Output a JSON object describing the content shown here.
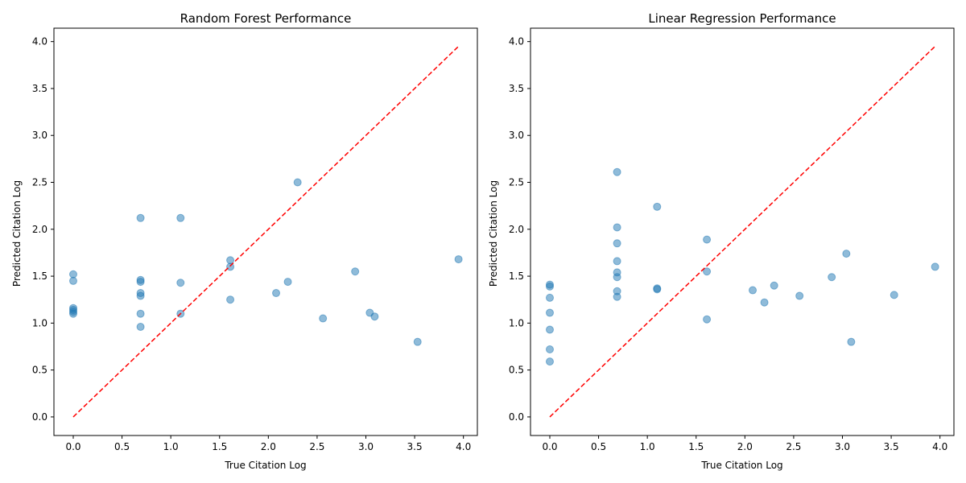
{
  "chart_data": [
    {
      "type": "scatter",
      "title": "Random Forest Performance",
      "xlabel": "True Citation Log",
      "ylabel": "Predicted Citation Log",
      "xlim": [
        -0.198,
        4.143
      ],
      "ylim": [
        -0.198,
        4.143
      ],
      "xticks": [
        0.0,
        0.5,
        1.0,
        1.5,
        2.0,
        2.5,
        3.0,
        3.5,
        4.0
      ],
      "yticks": [
        0.0,
        0.5,
        1.0,
        1.5,
        2.0,
        2.5,
        3.0,
        3.5,
        4.0
      ],
      "x_tick_labels": [
        "0.0",
        "0.5",
        "1.0",
        "1.5",
        "2.0",
        "2.5",
        "3.0",
        "3.5",
        "4.0"
      ],
      "y_tick_labels": [
        "0.0",
        "0.5",
        "1.0",
        "1.5",
        "2.0",
        "2.5",
        "3.0",
        "3.5",
        "4.0"
      ],
      "grid": false,
      "reference_line": {
        "x": [
          0,
          3.95
        ],
        "y": [
          0,
          3.95
        ],
        "style": "dashed"
      },
      "series": [
        {
          "x": [
            0,
            0,
            0,
            0,
            0,
            0,
            0.69,
            0.69,
            0.69,
            0.69,
            0.69,
            0.69,
            0.69,
            1.1,
            1.1,
            1.1,
            1.61,
            1.61,
            1.61,
            2.08,
            2.2,
            2.3,
            2.56,
            2.89,
            3.04,
            3.09,
            3.53,
            3.95
          ],
          "y": [
            1.52,
            1.45,
            1.16,
            1.14,
            1.12,
            1.1,
            2.12,
            1.46,
            1.44,
            1.32,
            1.29,
            1.1,
            0.96,
            2.12,
            1.43,
            1.1,
            1.67,
            1.6,
            1.25,
            1.32,
            1.44,
            2.5,
            1.05,
            1.55,
            1.11,
            1.07,
            0.8,
            1.68
          ]
        }
      ]
    },
    {
      "type": "scatter",
      "title": "Linear Regression Performance",
      "xlabel": "True Citation Log",
      "ylabel": "Predicted Citation Log",
      "xlim": [
        -0.198,
        4.143
      ],
      "ylim": [
        -0.198,
        4.143
      ],
      "xticks": [
        0.0,
        0.5,
        1.0,
        1.5,
        2.0,
        2.5,
        3.0,
        3.5,
        4.0
      ],
      "yticks": [
        0.0,
        0.5,
        1.0,
        1.5,
        2.0,
        2.5,
        3.0,
        3.5,
        4.0
      ],
      "x_tick_labels": [
        "0.0",
        "0.5",
        "1.0",
        "1.5",
        "2.0",
        "2.5",
        "3.0",
        "3.5",
        "4.0"
      ],
      "y_tick_labels": [
        "0.0",
        "0.5",
        "1.0",
        "1.5",
        "2.0",
        "2.5",
        "3.0",
        "3.5",
        "4.0"
      ],
      "grid": false,
      "reference_line": {
        "x": [
          0,
          3.95
        ],
        "y": [
          0,
          3.95
        ],
        "style": "dashed"
      },
      "series": [
        {
          "x": [
            0,
            0,
            0,
            0,
            0,
            0,
            0,
            0.69,
            0.69,
            0.69,
            0.69,
            0.69,
            0.69,
            0.69,
            0.69,
            1.1,
            1.1,
            1.1,
            1.61,
            1.61,
            1.61,
            2.08,
            2.2,
            2.3,
            2.56,
            2.89,
            3.04,
            3.09,
            3.53,
            3.95
          ],
          "y": [
            1.41,
            1.39,
            1.27,
            1.11,
            0.93,
            0.72,
            0.59,
            2.61,
            2.02,
            1.85,
            1.66,
            1.54,
            1.49,
            1.34,
            1.28,
            2.24,
            1.37,
            1.36,
            1.89,
            1.55,
            1.04,
            1.35,
            1.22,
            1.4,
            1.29,
            1.49,
            1.74,
            0.8,
            1.3,
            1.6
          ]
        }
      ]
    }
  ],
  "colors": {
    "point": "#1f77b4",
    "reference_line": "#ff0000"
  }
}
